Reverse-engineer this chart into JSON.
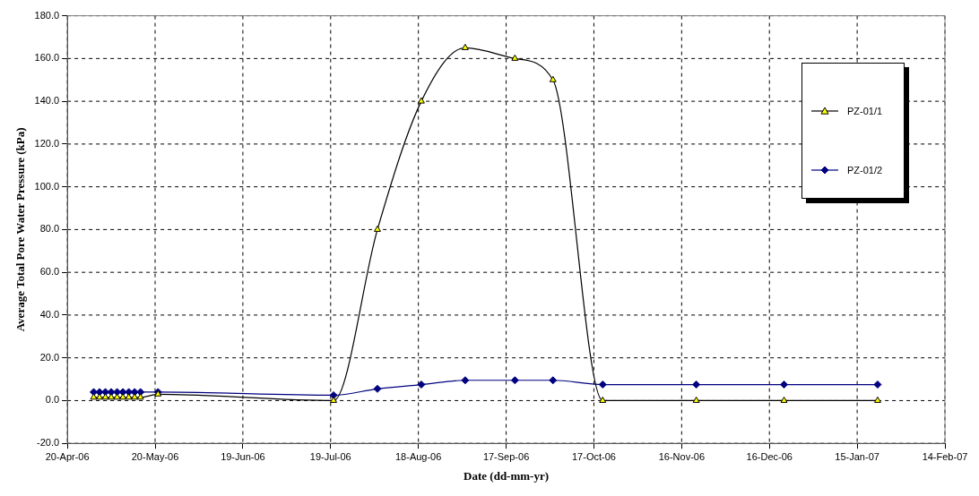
{
  "chart_data": {
    "type": "line",
    "xlabel": "Date (dd-mm-yr)",
    "ylabel": "Average Total Pore Water Pressure (kPa)",
    "xlim": [
      "2006-04-20",
      "2007-02-14"
    ],
    "xticks": [
      {
        "value": "2006-04-20",
        "label": "20-Apr-06"
      },
      {
        "value": "2006-05-20",
        "label": "20-May-06"
      },
      {
        "value": "2006-06-19",
        "label": "19-Jun-06"
      },
      {
        "value": "2006-07-19",
        "label": "19-Jul-06"
      },
      {
        "value": "2006-08-18",
        "label": "18-Aug-06"
      },
      {
        "value": "2006-09-17",
        "label": "17-Sep-06"
      },
      {
        "value": "2006-10-17",
        "label": "17-Oct-06"
      },
      {
        "value": "2006-11-16",
        "label": "16-Nov-06"
      },
      {
        "value": "2006-12-16",
        "label": "16-Dec-06"
      },
      {
        "value": "2007-01-15",
        "label": "15-Jan-07"
      },
      {
        "value": "2007-02-14",
        "label": "14-Feb-07"
      }
    ],
    "ylim": [
      -20,
      180
    ],
    "yticks": [
      {
        "value": -20,
        "label": "-20.0"
      },
      {
        "value": 0,
        "label": "0.0"
      },
      {
        "value": 20,
        "label": "20.0"
      },
      {
        "value": 40,
        "label": "40.0"
      },
      {
        "value": 60,
        "label": "60.0"
      },
      {
        "value": 80,
        "label": "80.0"
      },
      {
        "value": 100,
        "label": "100.0"
      },
      {
        "value": 120,
        "label": "120.0"
      },
      {
        "value": 140,
        "label": "140.0"
      },
      {
        "value": 160,
        "label": "160.0"
      },
      {
        "value": 180,
        "label": "180.0"
      }
    ],
    "grid": true,
    "legend": "top right",
    "line_style": "solid",
    "series": [
      {
        "name": "PZ-01/1",
        "color": "#000000",
        "marker": "triangle",
        "x": [
          "2006-04-29",
          "2006-05-01",
          "2006-05-03",
          "2006-05-05",
          "2006-05-07",
          "2006-05-09",
          "2006-05-11",
          "2006-05-13",
          "2006-05-15",
          "2006-05-21",
          "2006-07-20",
          "2006-08-04",
          "2006-08-19",
          "2006-09-03",
          "2006-09-20",
          "2006-10-03",
          "2006-10-20",
          "2006-11-21",
          "2006-12-21",
          "2007-01-22"
        ],
        "values": [
          1.5,
          1.5,
          1.5,
          1.5,
          1.5,
          1.5,
          1.5,
          1.5,
          1.5,
          3,
          0,
          80,
          140,
          165,
          160,
          150,
          0,
          0,
          0,
          0
        ]
      },
      {
        "name": "PZ-01/2",
        "color": "#000080",
        "marker": "diamond",
        "x": [
          "2006-04-29",
          "2006-05-01",
          "2006-05-03",
          "2006-05-05",
          "2006-05-07",
          "2006-05-09",
          "2006-05-11",
          "2006-05-13",
          "2006-05-15",
          "2006-05-21",
          "2006-07-20",
          "2006-08-04",
          "2006-08-19",
          "2006-09-03",
          "2006-09-20",
          "2006-10-03",
          "2006-10-20",
          "2006-11-21",
          "2006-12-21",
          "2007-01-22"
        ],
        "values": [
          4,
          4,
          4,
          4,
          4,
          4,
          4,
          4,
          4,
          4,
          2.5,
          5.5,
          7.5,
          9.5,
          9.5,
          9.5,
          7.5,
          7.5,
          7.5,
          7.5
        ]
      }
    ]
  }
}
